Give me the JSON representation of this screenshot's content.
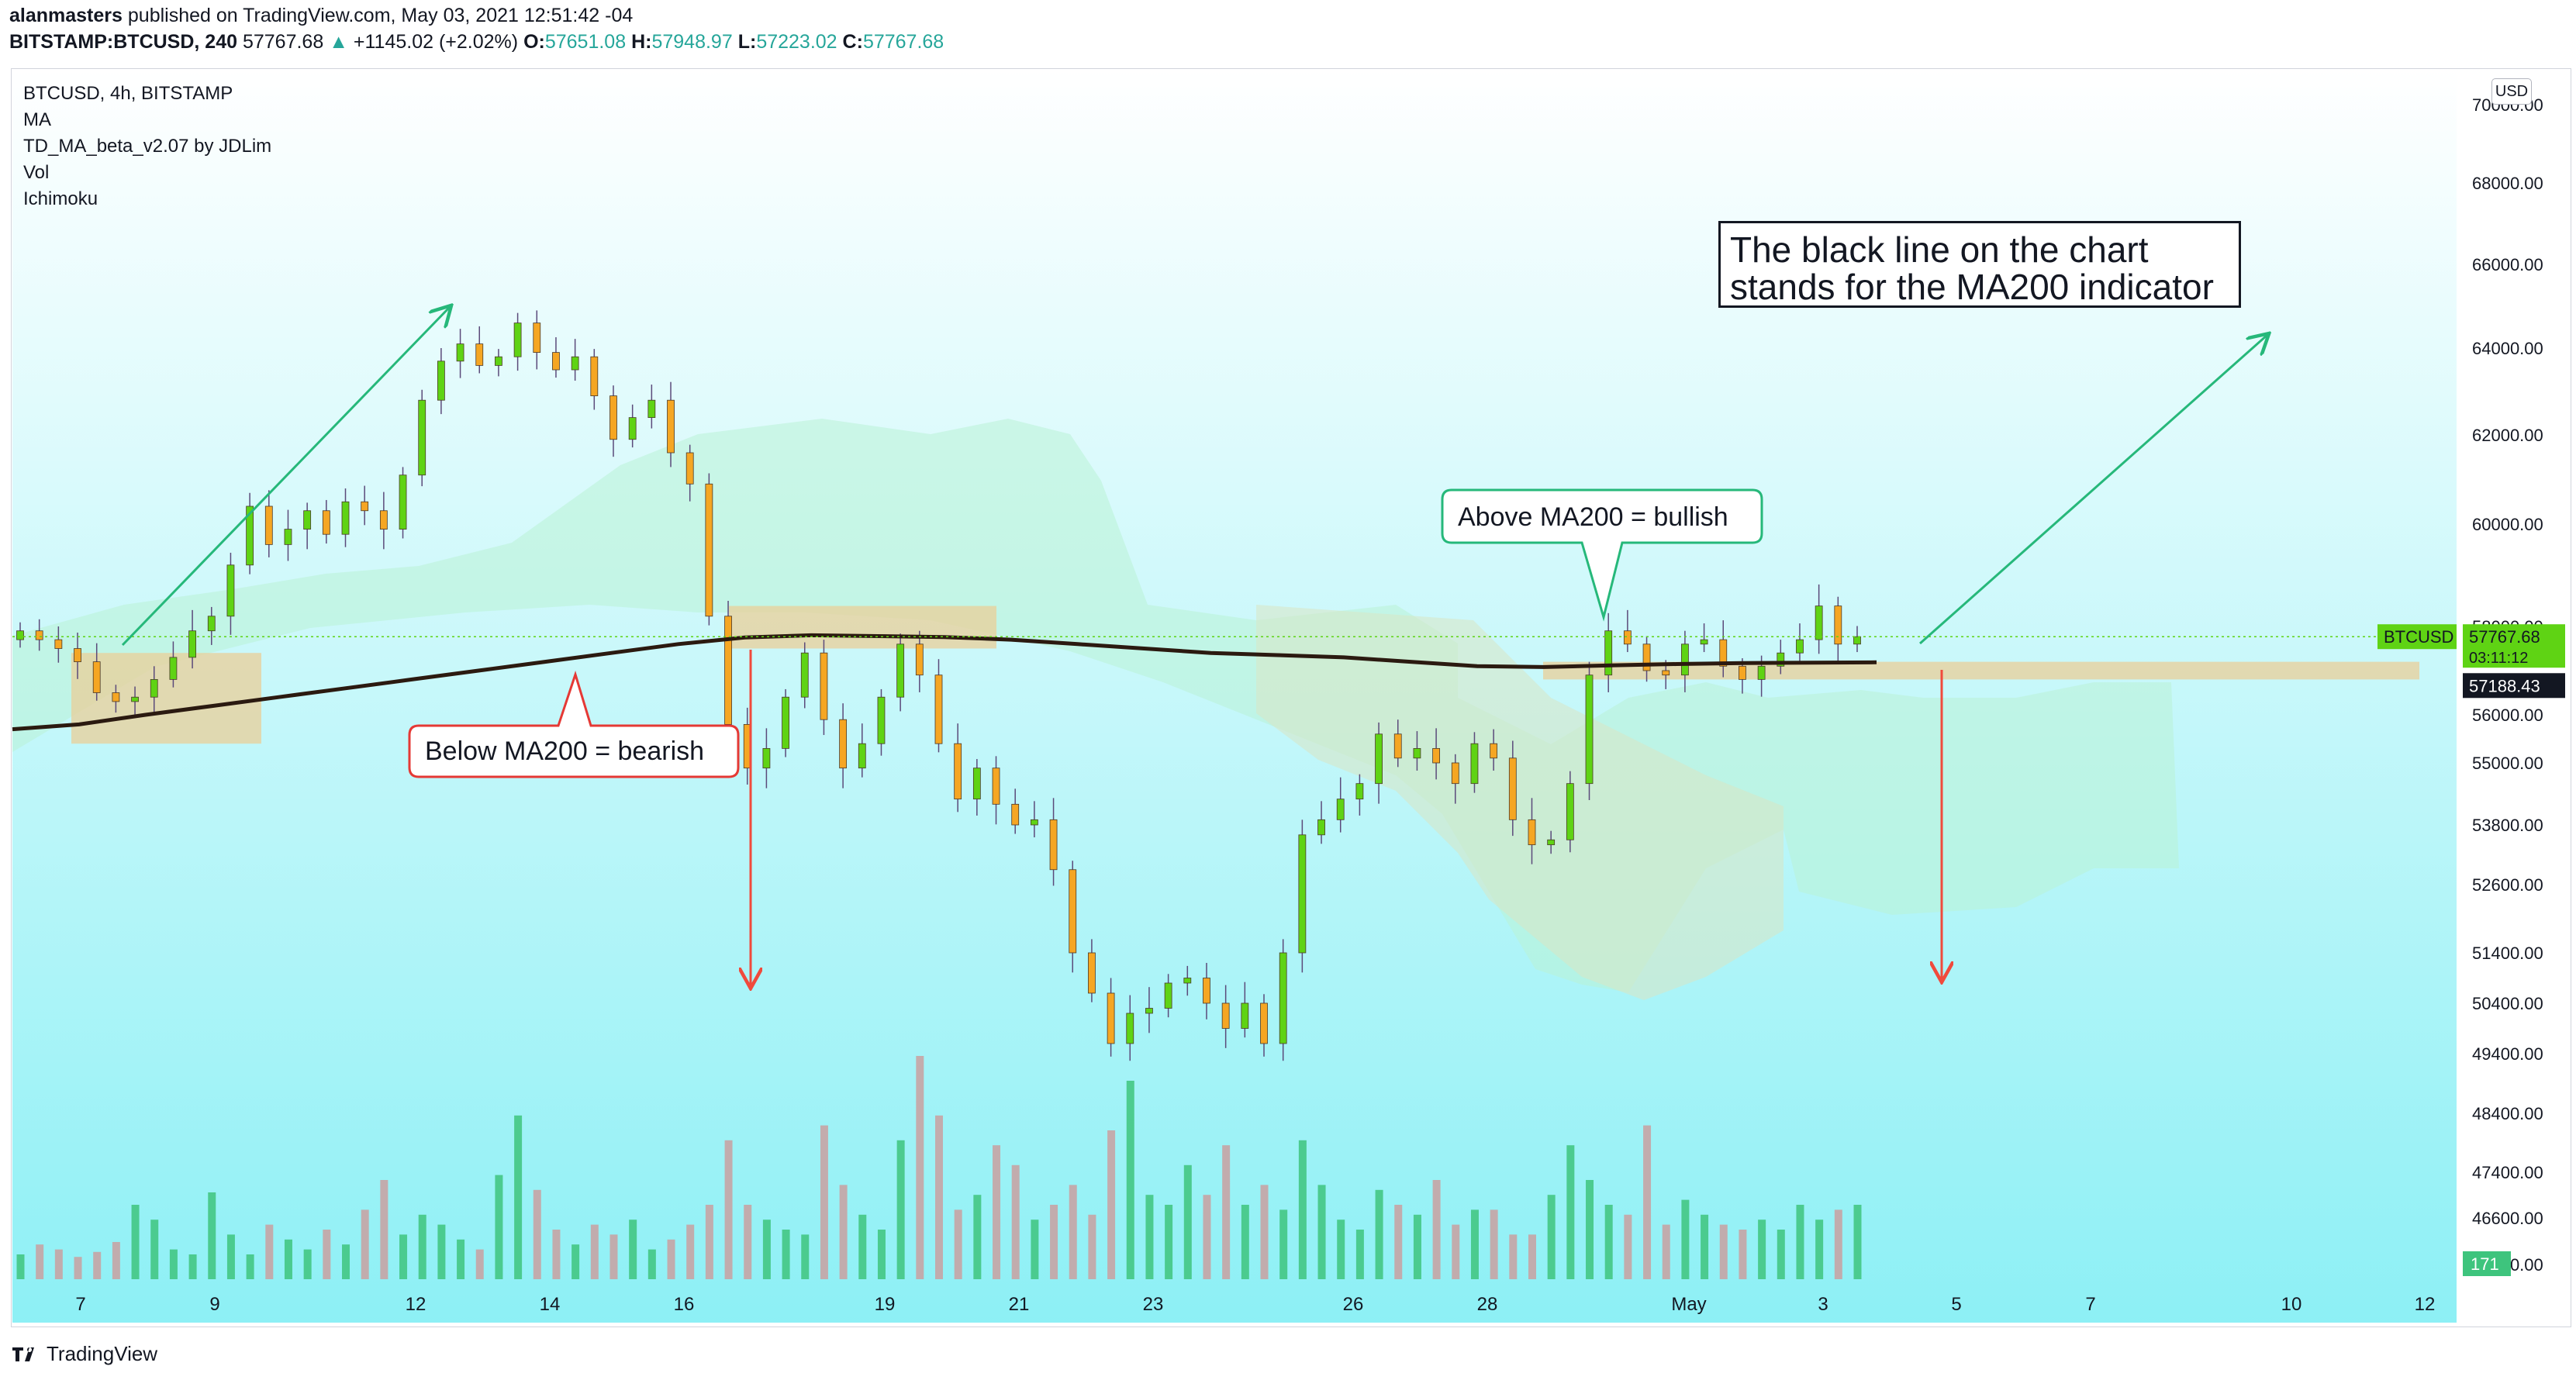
{
  "header": {
    "author": "alanmasters",
    "published_text": "published on TradingView.com, May 03, 2021 12:51:42 -04",
    "symbol": "BITSTAMP:BTCUSD, 240",
    "last": "57767.68",
    "change": "+1145.02 (+2.02%)",
    "o_label": "O:",
    "o": "57651.08",
    "h_label": "H:",
    "h": "57948.97",
    "l_label": "L:",
    "l": "57223.02",
    "c_label": "C:",
    "c": "57767.68"
  },
  "legend": [
    "BTCUSD, 4h, BITSTAMP",
    "MA",
    "TD_MA_beta_v2.07 by JDLim",
    "Vol",
    "Ichimoku"
  ],
  "currency_badge": "USD",
  "annotations": {
    "below": "Below MA200 = bearish",
    "above": "Above MA200 = bullish",
    "box_line1": "The black line on the chart",
    "box_line2": "stands for the MA200 indicator"
  },
  "footer": {
    "brand": "TradingView"
  },
  "colors": {
    "up": "#5fd314",
    "down": "#f5a623",
    "ma": "#2b1a10",
    "zone": "#e9cf98",
    "volume_up": "#3ec47d",
    "volume_down": "#c9a0a0",
    "bg_top": "#ffffff",
    "bg_bottom": "#8df0f5",
    "arrow_up": "#26b87a",
    "arrow_down": "#f04a3c"
  },
  "chart_data": {
    "type": "candlestick",
    "symbol": "BTCUSD",
    "interval": "4h",
    "y_ticks": [
      70000,
      68000,
      66000,
      64000,
      62000,
      60000,
      58000,
      56000,
      55000,
      53800,
      52600,
      51400,
      50400,
      49400,
      48400,
      47400,
      46600,
      46000
    ],
    "x_ticks": [
      "7",
      "9",
      "12",
      "14",
      "16",
      "19",
      "21",
      "23",
      "26",
      "28",
      "May",
      "3",
      "5",
      "7",
      "10",
      "12"
    ],
    "last_price_label": "BTCUSD",
    "last_price": "57767.68",
    "countdown": "03:11:12",
    "ma200_value": "57188.43",
    "volume_label": "171",
    "close": [
      57900,
      57700,
      57500,
      57200,
      56500,
      56300,
      56400,
      56800,
      57300,
      57900,
      58200,
      59200,
      60400,
      59600,
      59900,
      60300,
      59800,
      60500,
      60300,
      59900,
      61100,
      62800,
      63700,
      64100,
      63600,
      63800,
      64600,
      63900,
      63500,
      63800,
      62900,
      61900,
      62400,
      62800,
      61600,
      60900,
      58200,
      55800,
      54900,
      55300,
      56400,
      57400,
      55900,
      54900,
      55400,
      56400,
      57600,
      56900,
      55400,
      54300,
      54900,
      54200,
      53800,
      53900,
      52900,
      51400,
      50600,
      49600,
      50200,
      50300,
      50800,
      50900,
      50400,
      49900,
      50400,
      49600,
      51400,
      53600,
      53900,
      54300,
      54600,
      55600,
      55100,
      55300,
      55000,
      54600,
      55400,
      55100,
      53900,
      53400,
      53500,
      54600,
      56900,
      57900,
      57600,
      57000,
      56900,
      57600,
      57700,
      57100,
      56800,
      57100,
      57400,
      57700,
      58400,
      57600,
      57768
    ],
    "ma200": [
      55700,
      55800,
      56000,
      56200,
      56400,
      56600,
      56800,
      57000,
      57200,
      57400,
      57600,
      57750,
      57800,
      57780,
      57760,
      57700,
      57600,
      57500,
      57400,
      57350,
      57300,
      57200,
      57100,
      57080,
      57120,
      57150,
      57170,
      57180,
      57188
    ],
    "volume": [
      10,
      14,
      12,
      9,
      11,
      15,
      30,
      24,
      12,
      10,
      35,
      18,
      10,
      22,
      16,
      12,
      20,
      14,
      28,
      40,
      18,
      26,
      22,
      16,
      12,
      42,
      66,
      36,
      20,
      14,
      22,
      18,
      24,
      12,
      16,
      22,
      30,
      56,
      30,
      24,
      20,
      18,
      62,
      38,
      26,
      20,
      56,
      90,
      66,
      28,
      34,
      54,
      46,
      24,
      30,
      38,
      26,
      60,
      80,
      34,
      30,
      46,
      34,
      54,
      30,
      38,
      28,
      56,
      38,
      24,
      20,
      36,
      30,
      26,
      40,
      22,
      28,
      28,
      18,
      18,
      34,
      54,
      40,
      30,
      26,
      62,
      22,
      32,
      26,
      22,
      20,
      24,
      20,
      30,
      24,
      28,
      30
    ],
    "zones": [
      "bottom-left support zone",
      "mid resistance zone",
      "right support zone"
    ]
  }
}
